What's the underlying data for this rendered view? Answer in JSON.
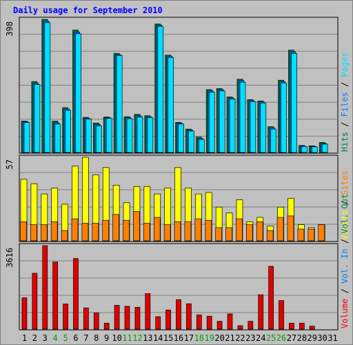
{
  "chart_data": {
    "type": "bar",
    "title": "Daily usage for September 2010",
    "days": [
      "1",
      "2",
      "3",
      "4",
      "5",
      "6",
      "7",
      "8",
      "9",
      "10",
      "11",
      "12",
      "13",
      "14",
      "15",
      "16",
      "17",
      "18",
      "19",
      "20",
      "21",
      "22",
      "23",
      "24",
      "25",
      "26",
      "27",
      "28",
      "29",
      "30",
      "31"
    ],
    "weekend_days": [
      "4",
      "5",
      "11",
      "12",
      "18",
      "19",
      "25",
      "26"
    ],
    "panels": [
      {
        "id": "hits-files-pages",
        "ymax_label": "398",
        "ymax": 398,
        "side_label": [
          "Hits",
          "Files",
          "Pages"
        ],
        "side_colors": [
          "#008040",
          "#0080ff",
          "#00e0ff"
        ],
        "series": [
          {
            "name": "Hits",
            "color": "#008040",
            "values": [
              94,
              212,
              398,
              94,
              134,
              366,
              105,
              88,
              106,
              296,
              107,
              114,
              110,
              384,
              291,
              90,
              70,
              46,
              188,
              191,
              166,
              219,
              158,
              154,
              77,
              216,
              306,
              21,
              20,
              30,
              0
            ]
          },
          {
            "name": "Files",
            "color": "#0080ff",
            "values": [
              92,
              207,
              393,
              89,
              130,
              360,
              102,
              84,
              104,
              293,
              104,
              110,
              107,
              381,
              288,
              88,
              67,
              42,
              184,
              188,
              163,
              215,
              155,
              151,
              74,
              212,
              301,
              19,
              18,
              27,
              0
            ]
          },
          {
            "name": "Pages",
            "color": "#00e0ff",
            "values": [
              90,
              203,
              388,
              85,
              126,
              355,
              100,
              80,
              102,
              290,
              101,
              106,
              104,
              377,
              284,
              85,
              64,
              39,
              180,
              184,
              160,
              210,
              152,
              148,
              70,
              208,
              296,
              18,
              17,
              25,
              0
            ]
          }
        ]
      },
      {
        "id": "visits-sites",
        "ymax_label": "57",
        "ymax": 57,
        "side_label": [
          "Visits",
          "Sites"
        ],
        "side_colors": [
          "#ffff00",
          "#ff8000"
        ],
        "series": [
          {
            "name": "Visits",
            "color": "#ffff00",
            "values": [
              42,
              39,
              32,
              36,
              25,
              51,
              57,
              45,
              50,
              38,
              26,
              37,
              37,
              32,
              36,
              50,
              36,
              32,
              33,
              23,
              19,
              28,
              13,
              16,
              10,
              23,
              29,
              11,
              9,
              11,
              0
            ]
          },
          {
            "name": "Sites",
            "color": "#ff8000",
            "values": [
              13,
              11,
              11,
              13,
              7,
              15,
              12,
              12,
              14,
              18,
              14,
              20,
              12,
              16,
              11,
              13,
              13,
              15,
              14,
              9,
              9,
              15,
              11,
              13,
              7,
              16,
              17,
              8,
              8,
              11,
              0
            ]
          }
        ]
      },
      {
        "id": "volume",
        "ymax_label": "3616",
        "ymax": 3616,
        "side_label": [
          "Volume",
          "Vol. In",
          "Vol. Out"
        ],
        "side_colors": [
          "#ff0000",
          "#0080ff",
          "#008040"
        ],
        "series": [
          {
            "name": "Volume",
            "color": "#e00000",
            "values": [
              1360,
              2420,
              3616,
              2910,
              1090,
              3060,
              920,
              700,
              260,
              1030,
              990,
              950,
              1540,
              540,
              830,
              1280,
              1100,
              620,
              560,
              340,
              660,
              150,
              340,
              1490,
              2720,
              1240,
              260,
              260,
              130,
              0,
              0
            ]
          }
        ]
      }
    ]
  },
  "colors": {
    "background": "#c0c0c0",
    "plot_bg": "#c0c0c0",
    "title": "#0000ff",
    "grid": "#808080",
    "weekday_label": "#000000",
    "weekend_label": "#00a000"
  }
}
